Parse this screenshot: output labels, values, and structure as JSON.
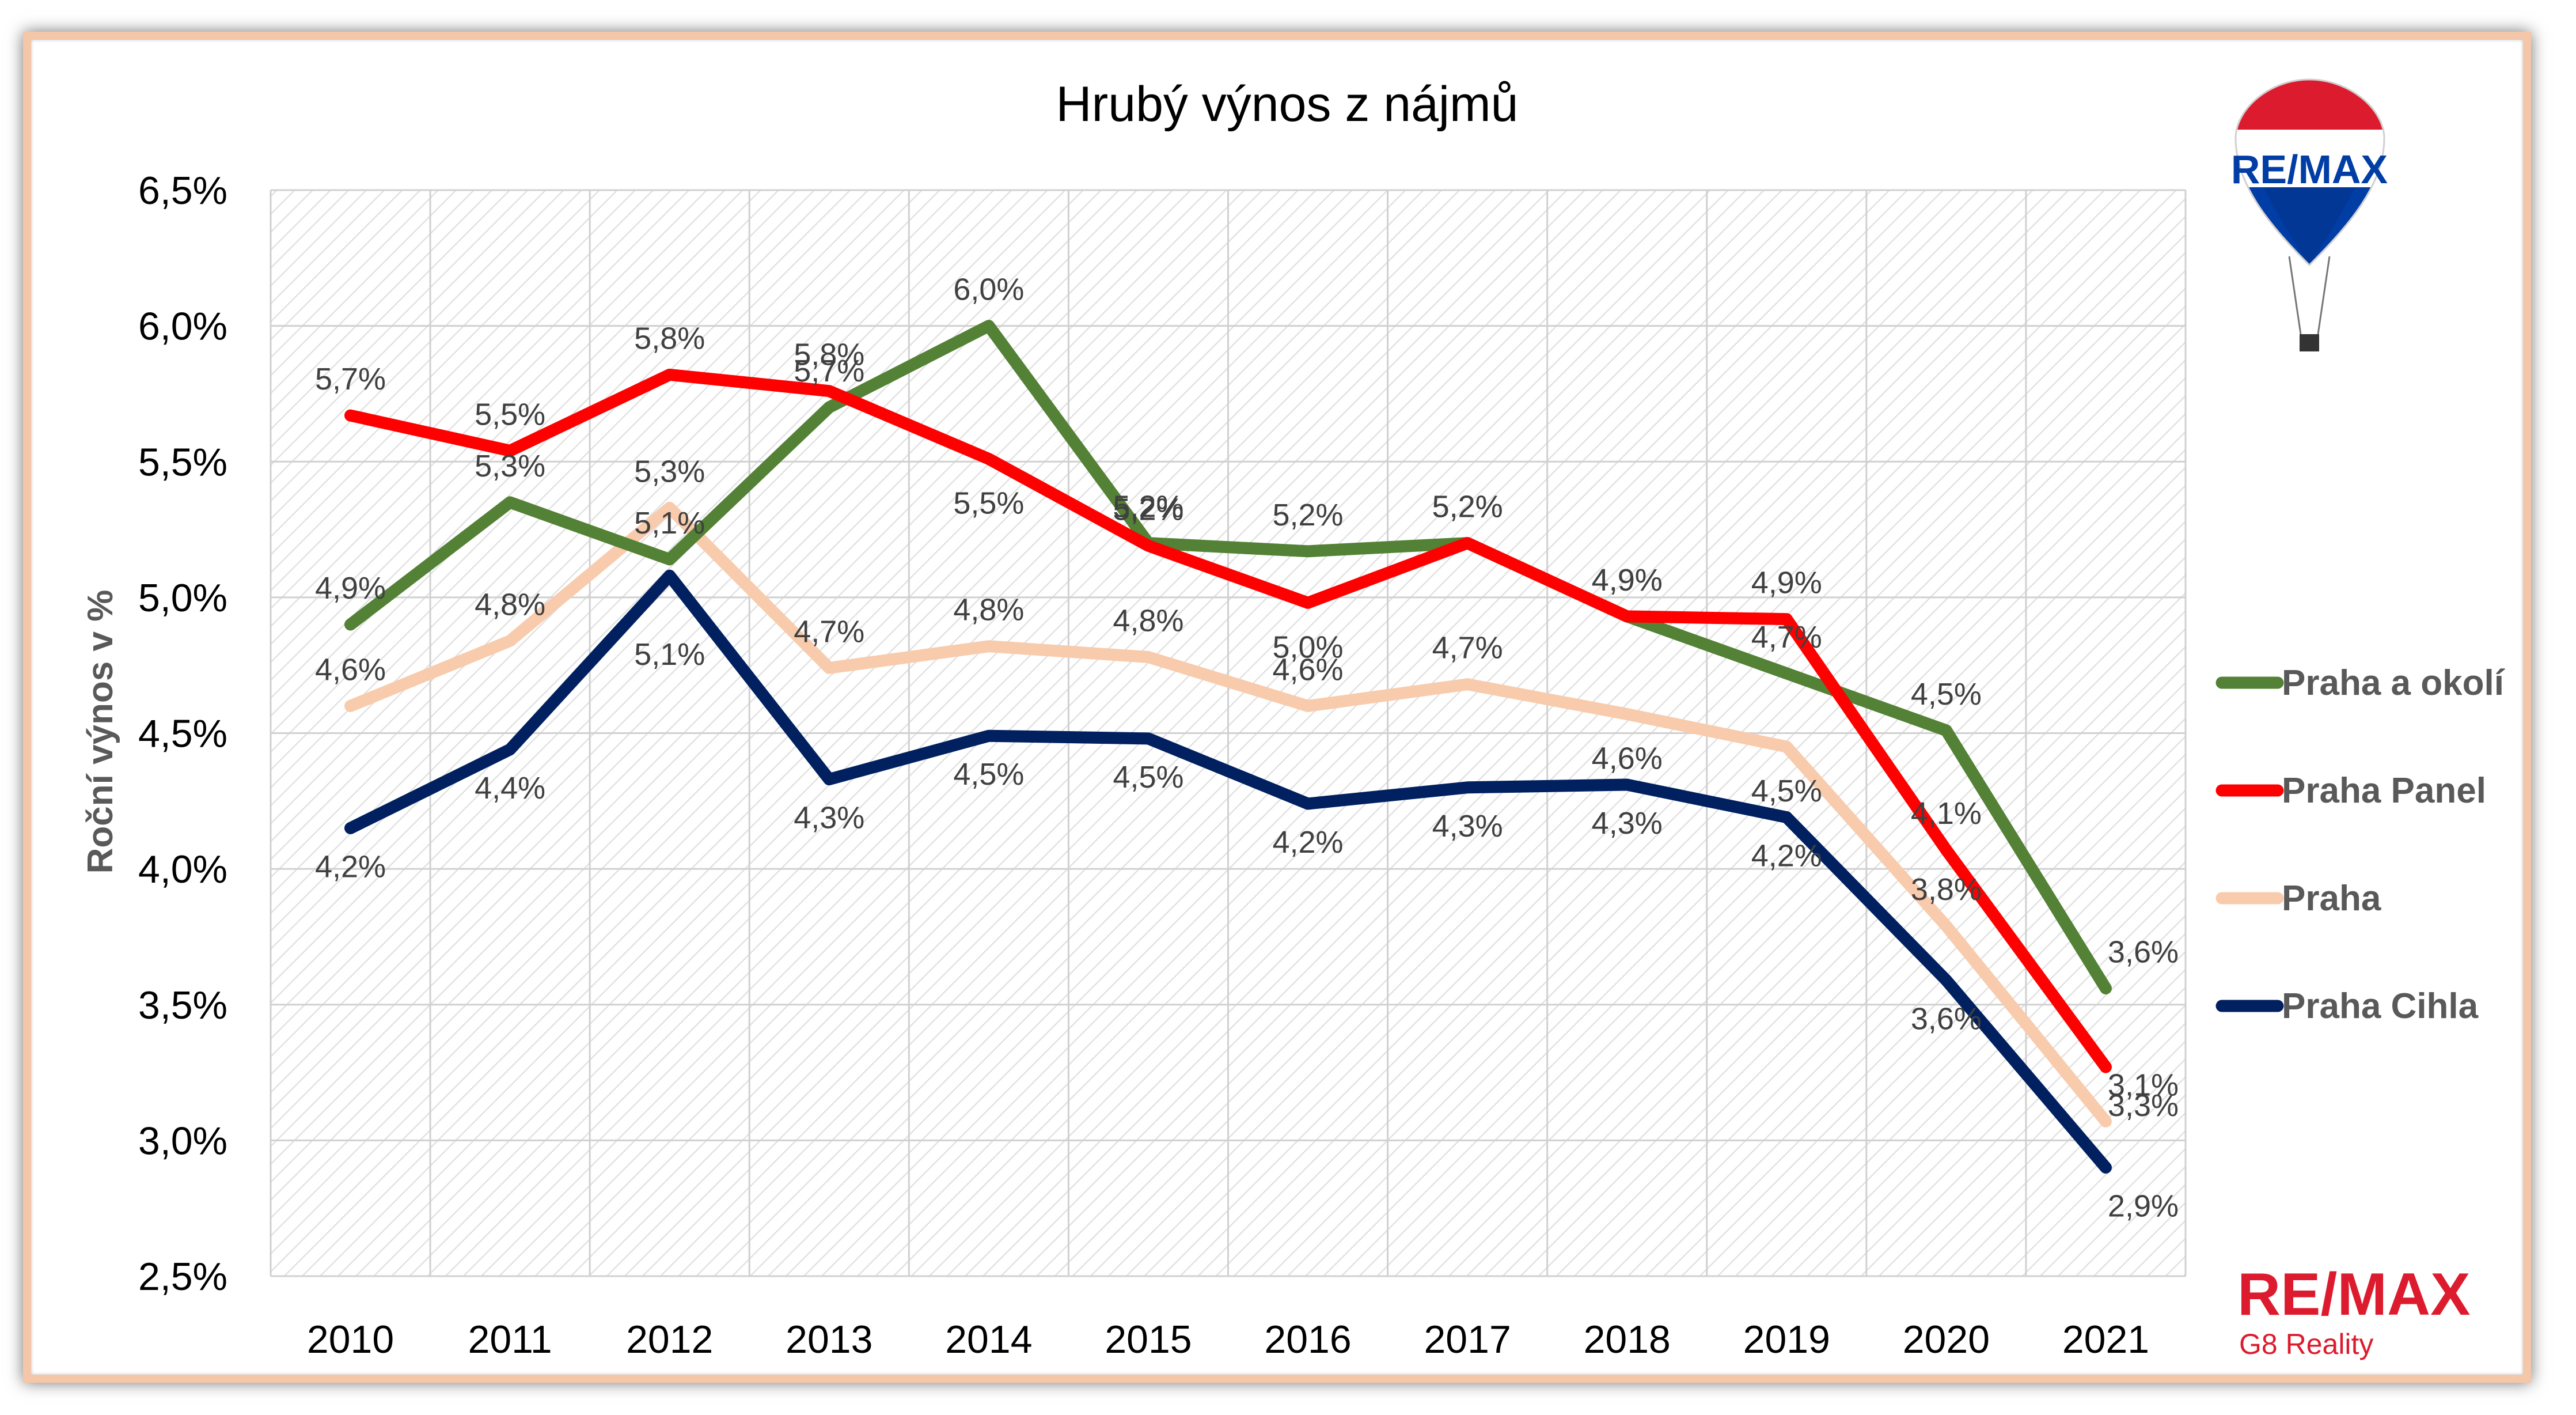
{
  "brand": {
    "logo_text": "RE/MAX",
    "subtitle": "G8 Reality",
    "red": "#dc1c2e",
    "blue": "#003da5"
  },
  "chart_data": {
    "type": "line",
    "title": "Hrubý výnos z nájmů",
    "xlabel": "",
    "ylabel": "Roční výnos v %",
    "categories": [
      "2010",
      "2011",
      "2012",
      "2013",
      "2014",
      "2015",
      "2016",
      "2017",
      "2018",
      "2019",
      "2020",
      "2021"
    ],
    "ylim": [
      2.5,
      6.5
    ],
    "yticks": [
      "2,5%",
      "3,0%",
      "3,5%",
      "4,0%",
      "4,5%",
      "5,0%",
      "5,5%",
      "6,0%",
      "6,5%"
    ],
    "grid": true,
    "legend_position": "right",
    "series": [
      {
        "name": "Praha a okolí",
        "color": "#538135",
        "values": [
          4.9,
          5.35,
          5.14,
          5.7,
          6.0,
          5.2,
          5.17,
          5.2,
          4.93,
          4.72,
          4.51,
          3.56
        ],
        "labels": [
          "4,9%",
          "5,3%",
          "5,1%",
          "5,7%",
          "6,0%",
          "5,2%",
          "5,2%",
          "5,2%",
          "4,9%",
          "4,7%",
          "4,5%",
          "3,6%"
        ]
      },
      {
        "name": "Praha Panel",
        "color": "#ff0000",
        "values": [
          5.67,
          5.54,
          5.82,
          5.76,
          5.51,
          5.19,
          4.98,
          5.2,
          4.93,
          4.92,
          4.07,
          3.27
        ],
        "labels": [
          "5,7%",
          "5,5%",
          "5,8%",
          "5,8%",
          "5,5%",
          "5,2%",
          "5,0%",
          "5,2%",
          "4,9%",
          "4,9%",
          "4,1%",
          "3,3%"
        ]
      },
      {
        "name": "Praha",
        "color": "#f8cbad",
        "values": [
          4.6,
          4.84,
          5.33,
          4.74,
          4.82,
          4.78,
          4.6,
          4.68,
          4.57,
          4.45,
          3.79,
          3.07
        ],
        "labels": [
          "4,6%",
          "4,8%",
          "5,3%",
          "4,7%",
          "4,8%",
          "4,8%",
          "4,6%",
          "4,7%",
          "4,6%",
          "4,5%",
          "3,8%",
          "3,1%"
        ]
      },
      {
        "name": "Praha Cihla",
        "color": "#002060",
        "values": [
          4.15,
          4.44,
          5.08,
          4.33,
          4.49,
          4.48,
          4.24,
          4.3,
          4.31,
          4.19,
          3.59,
          2.9
        ],
        "labels": [
          "4,2%",
          "4,4%",
          "5,1%",
          "4,3%",
          "4,5%",
          "4,5%",
          "4,2%",
          "4,3%",
          "4,3%",
          "4,2%",
          "3,6%",
          "2,9%"
        ]
      }
    ]
  }
}
